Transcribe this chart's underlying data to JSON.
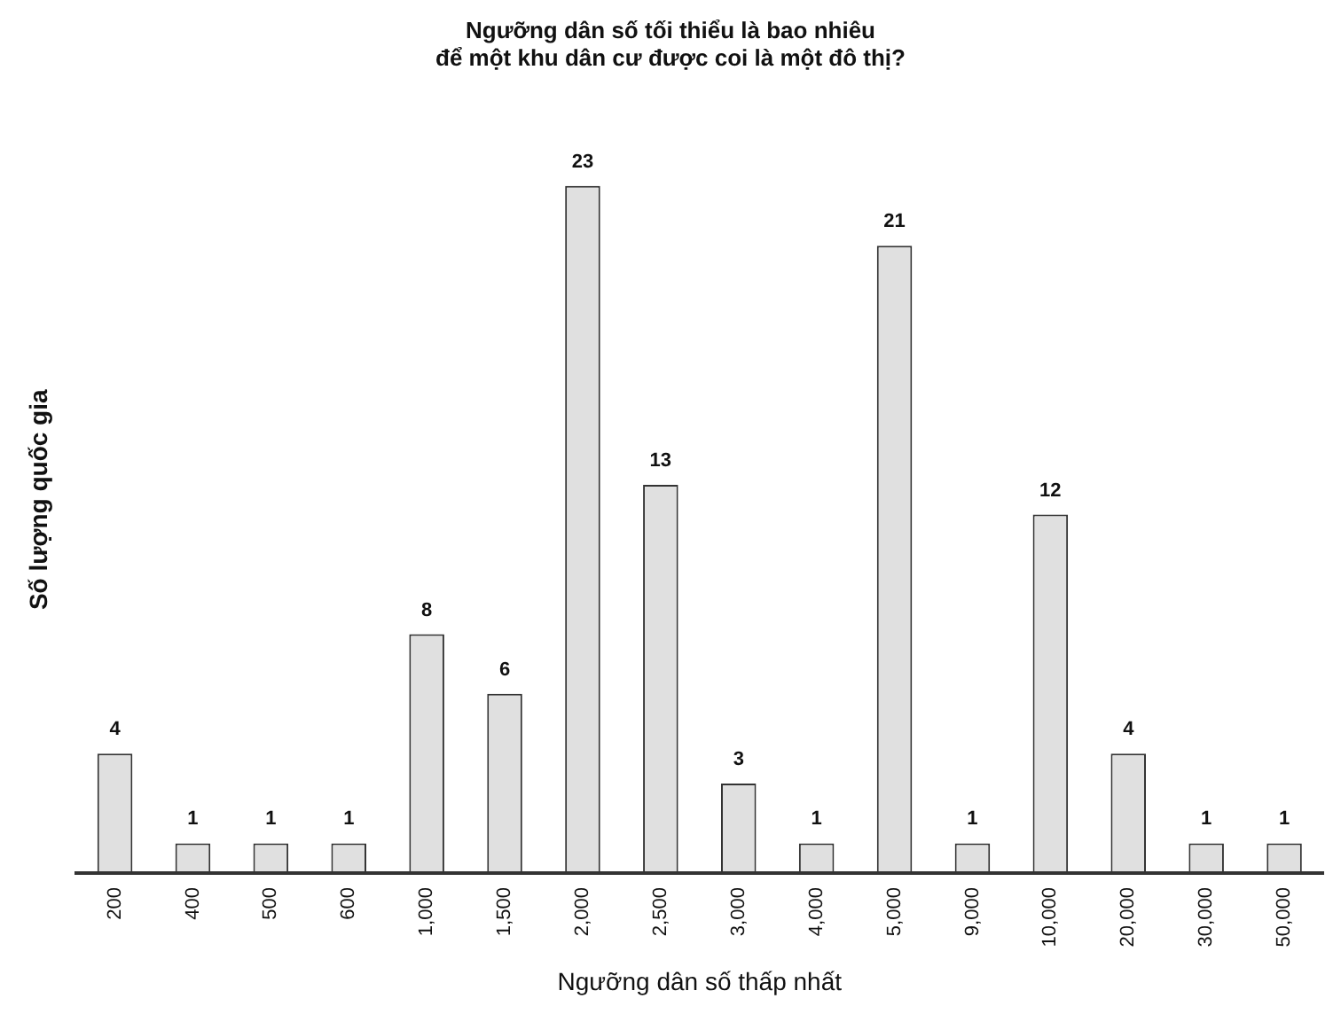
{
  "chart_data": {
    "type": "bar",
    "title": "Ngưỡng dân số tối thiểu là bao nhiêu\nđể một khu dân cư được coi là một đô thị?",
    "xlabel": "Ngưỡng dân số thấp nhất",
    "ylabel": "Số lượng quốc gia",
    "categories": [
      "200",
      "400",
      "500",
      "600",
      "1,000",
      "1,500",
      "2,000",
      "2,500",
      "3,000",
      "4,000",
      "5,000",
      "9,000",
      "10,000",
      "20,000",
      "30,000",
      "50,000"
    ],
    "values": [
      4,
      1,
      1,
      1,
      8,
      6,
      23,
      13,
      3,
      1,
      21,
      1,
      12,
      4,
      1,
      1
    ],
    "color": "#e0e0e0",
    "data_labels": true,
    "grid": false,
    "legend": false
  }
}
